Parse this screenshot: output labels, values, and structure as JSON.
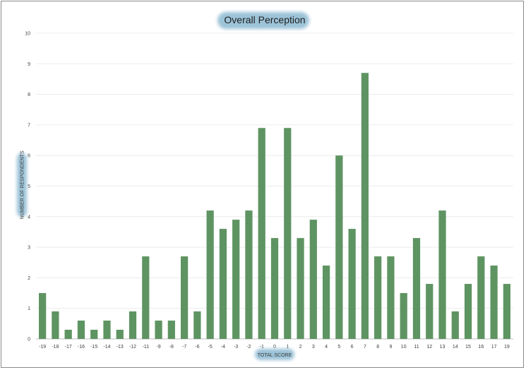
{
  "chart_data": {
    "type": "bar",
    "title": "Overall Perception",
    "xlabel": "TOTAL SCORE",
    "ylabel": "NUMBER OF RESPONDENTS",
    "ylim": [
      0,
      10
    ],
    "yticks": [
      0,
      1,
      2,
      3,
      4,
      5,
      6,
      7,
      8,
      9,
      10
    ],
    "grid": true,
    "bar_color": "#5e9462",
    "categories": [
      "-19",
      "-18",
      "-17",
      "-16",
      "-15",
      "-14",
      "-13",
      "-12",
      "-11",
      "-9",
      "-8",
      "-7",
      "-6",
      "-5",
      "-4",
      "-3",
      "-2",
      "-1",
      "0",
      "1",
      "2",
      "3",
      "4",
      "5",
      "6",
      "7",
      "8",
      "9",
      "10",
      "11",
      "12",
      "13",
      "14",
      "15",
      "16",
      "17",
      "19"
    ],
    "values": [
      1.5,
      0.9,
      0.3,
      0.6,
      0.3,
      0.6,
      0.3,
      0.9,
      2.7,
      0.6,
      0.6,
      2.7,
      0.9,
      4.2,
      3.6,
      3.9,
      4.2,
      6.9,
      3.3,
      6.9,
      3.3,
      3.9,
      2.4,
      6.0,
      3.6,
      8.7,
      2.7,
      2.7,
      1.5,
      3.3,
      1.8,
      4.2,
      0.9,
      1.8,
      2.7,
      2.4,
      1.8
    ]
  }
}
